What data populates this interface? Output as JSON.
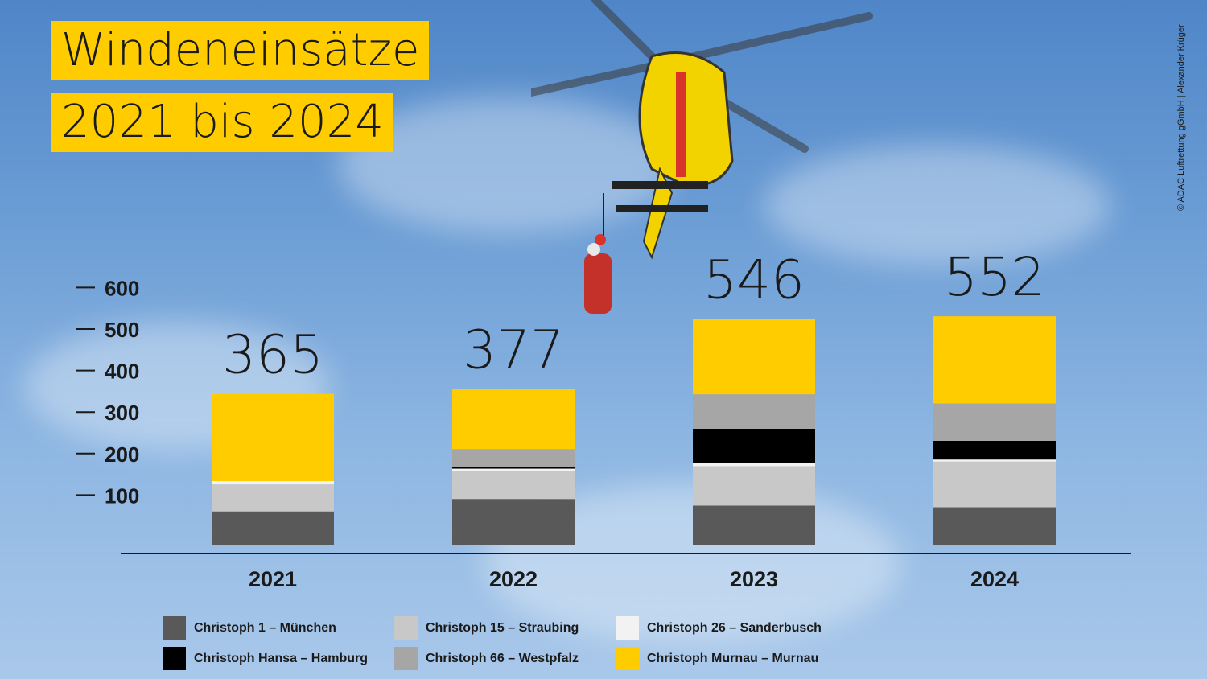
{
  "title_line1": "Windeneinsätze",
  "title_line2": "2021 bis 2024",
  "credit": "© ADAC Luftrettung gGmbH | Alexander Krüger",
  "chart_data": {
    "type": "bar",
    "stacked": true,
    "categories": [
      "2021",
      "2022",
      "2023",
      "2024"
    ],
    "totals": [
      365,
      377,
      546,
      552
    ],
    "y_ticks": [
      100,
      200,
      300,
      400,
      500,
      600
    ],
    "ylim": [
      0,
      600
    ],
    "grid": false,
    "legend_position": "bottom",
    "series": [
      {
        "name": "Christoph 1 – München",
        "color": "#595959",
        "values": [
          82,
          112,
          96,
          92
        ]
      },
      {
        "name": "Christoph 15 – Straubing",
        "color": "#c8c8c8",
        "values": [
          65,
          67,
          95,
          110
        ]
      },
      {
        "name": "Christoph 26 – Sanderbusch",
        "color": "#f2f2f2",
        "values": [
          8,
          6,
          7,
          5
        ]
      },
      {
        "name": "Christoph Hansa – Hamburg",
        "color": "#000000",
        "values": [
          0,
          5,
          83,
          45
        ]
      },
      {
        "name": "Christoph 66 – Westpfalz",
        "color": "#a6a6a6",
        "values": [
          0,
          42,
          83,
          90
        ]
      },
      {
        "name": "Christoph Murnau – Murnau",
        "color": "#ffcc00",
        "values": [
          210,
          145,
          182,
          210
        ]
      }
    ]
  }
}
